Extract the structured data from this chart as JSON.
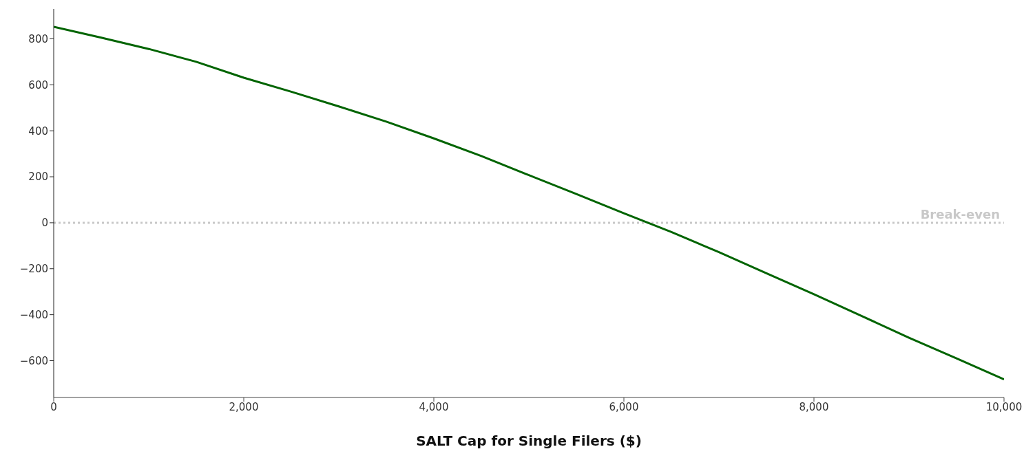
{
  "chart_data": {
    "type": "line",
    "xlabel": "SALT Cap for Single Filers ($)",
    "x": [
      0,
      500,
      1000,
      1500,
      2000,
      2500,
      3000,
      3500,
      4000,
      4500,
      5000,
      5500,
      6000,
      6500,
      7000,
      7500,
      8000,
      8500,
      9000,
      9500,
      10000
    ],
    "series": [
      {
        "color": "#006400",
        "values": [
          852,
          805,
          756,
          700,
          631,
          570,
          506,
          440,
          367,
          290,
          207,
          125,
          41,
          -40,
          -128,
          -220,
          -311,
          -405,
          -500,
          -590,
          -681
        ]
      }
    ],
    "xlim": [
      0,
      10000
    ],
    "xticks": [
      {
        "value": 0,
        "label": "0"
      },
      {
        "value": 2000,
        "label": "2,000"
      },
      {
        "value": 4000,
        "label": "4,000"
      },
      {
        "value": 6000,
        "label": "6,000"
      },
      {
        "value": 8000,
        "label": "8,000"
      },
      {
        "value": 10000,
        "label": "10,000"
      }
    ],
    "ylim": [
      -760,
      930
    ],
    "yticks": [
      {
        "value": -600,
        "label": "−600"
      },
      {
        "value": -400,
        "label": "−400"
      },
      {
        "value": -200,
        "label": "−200"
      },
      0,
      200,
      400,
      600,
      800
    ],
    "ref_lines": [
      {
        "axis": "y",
        "value": 0,
        "label": "Break-even",
        "color": "#c8c8c8",
        "line_style": "dotted"
      }
    ],
    "grid": false,
    "legend": false,
    "marker": "none",
    "line_style": "solid"
  }
}
